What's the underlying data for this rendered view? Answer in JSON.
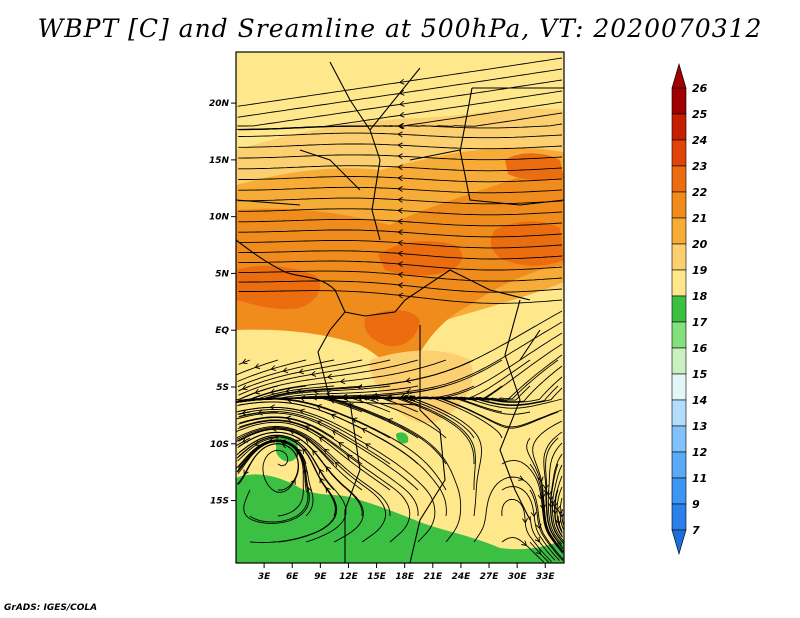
{
  "title": "WBPT [C] and Sreamline at 500hPa, VT: 2020070312",
  "credit": "GrADS: IGES/COLA",
  "map": {
    "lon_range": [
      0,
      35
    ],
    "lat_range": [
      -20.5,
      24.5
    ],
    "lon_ticks": [
      {
        "value": 3,
        "label": "3E"
      },
      {
        "value": 6,
        "label": "6E"
      },
      {
        "value": 9,
        "label": "9E"
      },
      {
        "value": 12,
        "label": "12E"
      },
      {
        "value": 15,
        "label": "15E"
      },
      {
        "value": 18,
        "label": "18E"
      },
      {
        "value": 21,
        "label": "21E"
      },
      {
        "value": 24,
        "label": "24E"
      },
      {
        "value": 27,
        "label": "27E"
      },
      {
        "value": 30,
        "label": "30E"
      },
      {
        "value": 33,
        "label": "33E"
      }
    ],
    "lat_ticks": [
      {
        "value": 20,
        "label": "20N"
      },
      {
        "value": 15,
        "label": "15N"
      },
      {
        "value": 10,
        "label": "10N"
      },
      {
        "value": 5,
        "label": "5N"
      },
      {
        "value": 0,
        "label": "EQ"
      },
      {
        "value": -5,
        "label": "5S"
      },
      {
        "value": -10,
        "label": "10S"
      },
      {
        "value": -15,
        "label": "15S"
      }
    ]
  },
  "colorbar": {
    "levels": [
      "7",
      "9",
      "11",
      "12",
      "13",
      "14",
      "15",
      "16",
      "17",
      "18",
      "19",
      "20",
      "21",
      "22",
      "23",
      "24",
      "25",
      "26"
    ],
    "colors": [
      "#1e6ed8",
      "#2c80ea",
      "#3c96f4",
      "#5aaaf8",
      "#82c2fc",
      "#b4dcfc",
      "#e4f6f8",
      "#c8f0c0",
      "#84e07c",
      "#3cc044",
      "#ffe88c",
      "#fcd070",
      "#f8ac38",
      "#f08c1c",
      "#ec6c10",
      "#e04408",
      "#c42000",
      "#a00000",
      "#a00000"
    ]
  }
}
